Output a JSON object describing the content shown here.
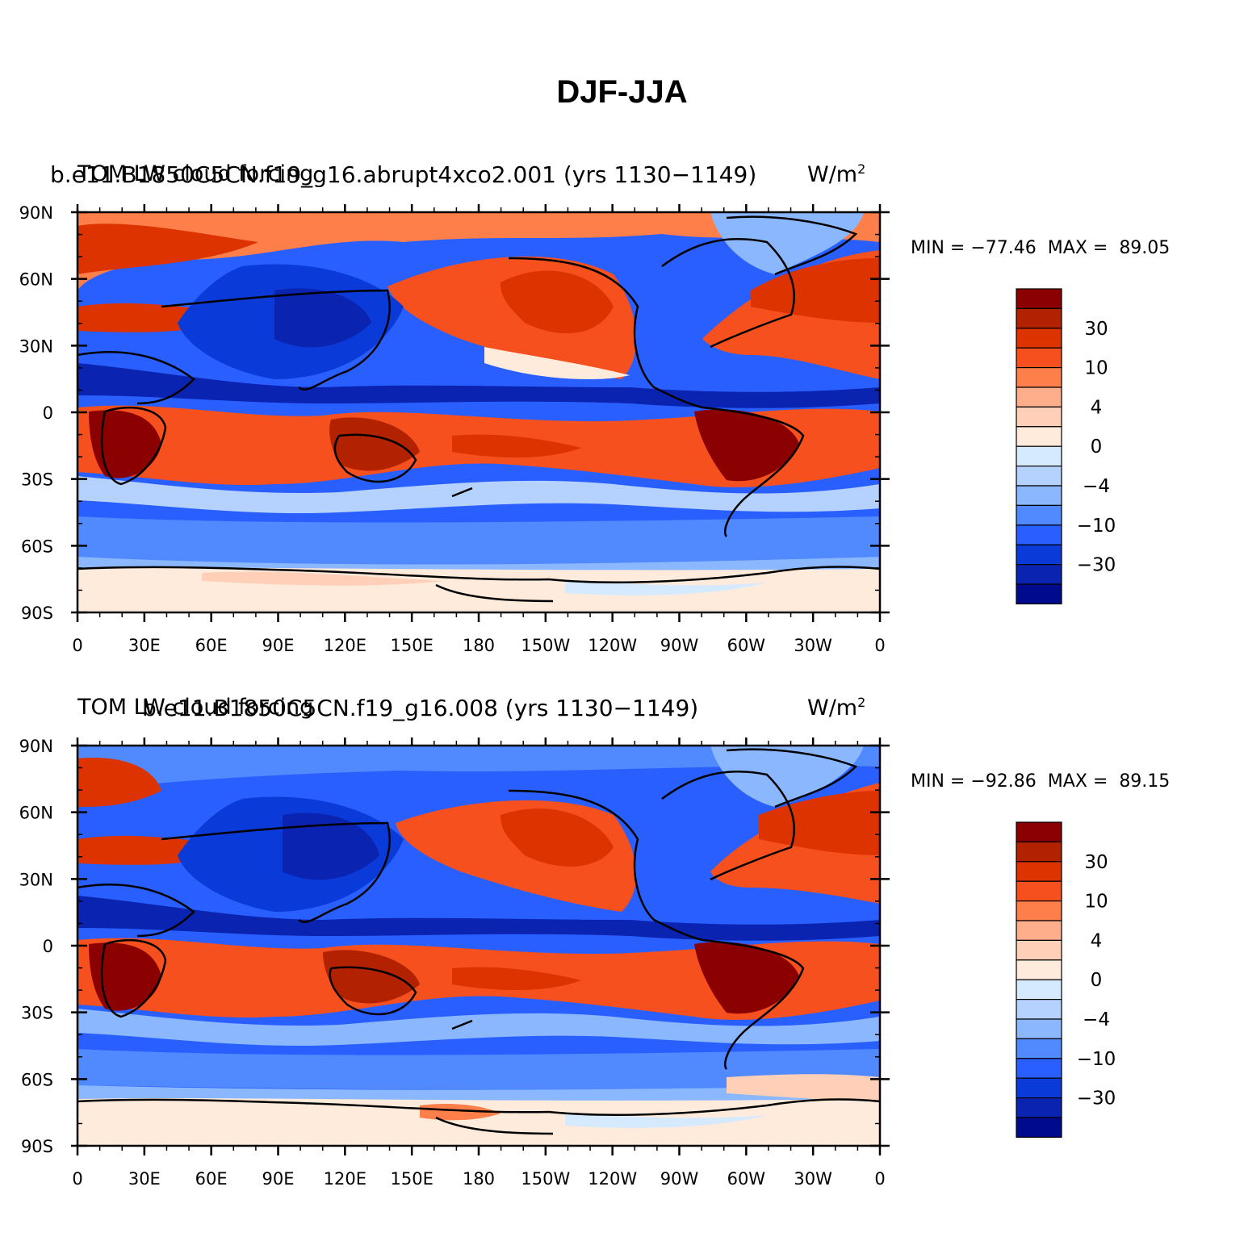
{
  "figure": {
    "title": "DJF-JJA"
  },
  "axes": {
    "lat_labels": [
      "90N",
      "60N",
      "30N",
      "0",
      "30S",
      "60S",
      "90S"
    ],
    "lon_labels": [
      "0",
      "30E",
      "60E",
      "90E",
      "120E",
      "150E",
      "180",
      "150W",
      "120W",
      "90W",
      "60W",
      "30W",
      "0"
    ]
  },
  "colorbar": {
    "colors": [
      "#8b0000",
      "#b22200",
      "#dc3300",
      "#f5501e",
      "#ff7f4a",
      "#ffae8c",
      "#ffcfb8",
      "#ffebdc",
      "#d6eaff",
      "#b5d2ff",
      "#8bb7ff",
      "#5189ff",
      "#2a5fff",
      "#0a3ad8",
      "#0a23b0",
      "#000a8c"
    ],
    "labels": [
      "30",
      "10",
      "4",
      "0",
      "−4",
      "−10",
      "−30"
    ]
  },
  "panels": [
    {
      "title_left": "TOM LW cloud forcing",
      "title_mid": "b.e11.B1850C5CN.f19_g16.abrupt4xco2.001 (yrs 1130−1149)",
      "title_units": "W/m",
      "title_sup": "2",
      "min_label": "MIN = ",
      "min": "−77.46",
      "max_label": "MAX = ",
      "max": "89.05"
    },
    {
      "title_left": "TOM LW cloud forcing",
      "title_mid": "b.e11.B1850C5CN.f19_g16.008 (yrs 1130−1149)",
      "title_units": "W/m",
      "title_sup": "2",
      "min_label": "MIN = ",
      "min": "−92.86",
      "max_label": "MAX = ",
      "max": "89.15"
    }
  ]
}
